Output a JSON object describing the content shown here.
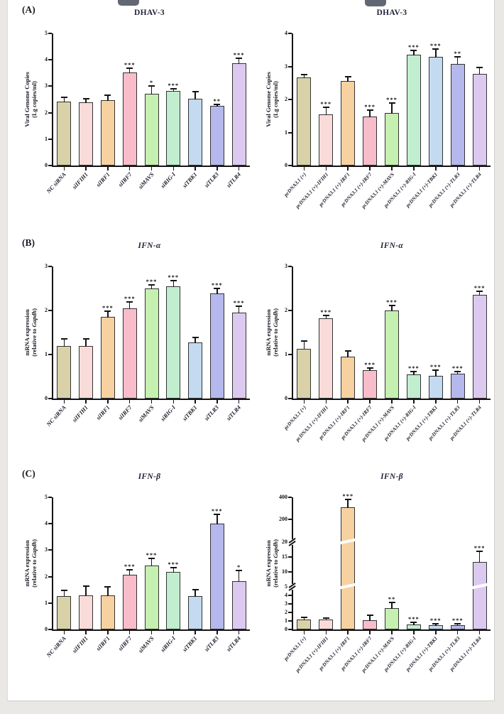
{
  "bar_colors": [
    "#d9d2a8",
    "#f9dcd9",
    "#f7d1a0",
    "#f9bcca",
    "#c5f0b0",
    "#c0eecf",
    "#c3daf0",
    "#b5b8ec",
    "#dcc9f0"
  ],
  "colors": {
    "page_background": "#ffffff",
    "backdrop": "#eae8e5",
    "axis": "#141414"
  },
  "chart_data": [
    {
      "type": "bar",
      "panel": "(A)",
      "title": "DHAV-3",
      "ylabel_line1": "Viral Genome Copies",
      "ylabel2_pre": "(Lg copies/ml)",
      "ylabel2_italic": "",
      "ylabel2_post": "",
      "categories": [
        "NC siRNA",
        "siIFIH1",
        "siIRF1",
        "siIRF7",
        "siMAVS",
        "siRIG-I",
        "siTBK1",
        "siTLR3",
        "siTLR4"
      ],
      "values": [
        2.42,
        2.4,
        2.46,
        3.52,
        2.72,
        2.83,
        2.52,
        2.25,
        3.86
      ],
      "errors": [
        0.15,
        0.12,
        0.2,
        0.15,
        0.28,
        0.07,
        0.27,
        0.07,
        0.2
      ],
      "significance": [
        "",
        "",
        "",
        "***",
        "*",
        "***",
        "",
        "**",
        "***"
      ],
      "ylim": [
        0,
        5
      ],
      "yticks": [
        {
          "v": 0,
          "l": "0"
        },
        {
          "v": 1,
          "l": "1"
        },
        {
          "v": 2,
          "l": "2"
        },
        {
          "v": 3,
          "l": "3"
        },
        {
          "v": 4,
          "l": "4"
        },
        {
          "v": 5,
          "l": "5"
        }
      ],
      "axis_breaks": [],
      "value_map": [
        [
          0,
          0
        ],
        [
          5,
          1
        ]
      ]
    },
    {
      "type": "bar",
      "panel": "",
      "title": "DHAV-3",
      "ylabel_line1": "Viral Genome Copies",
      "ylabel2_pre": "(Lg copies/ml)",
      "ylabel2_italic": "",
      "ylabel2_post": "",
      "categories": [
        "pcDNA3.1 (+)",
        "pcDNA3.1 (+)-IFIH1",
        "pcDNA3.1 (+)-IRF1",
        "pcDNA3.1 (+)-IRF7",
        "pcDNA3.1 (+)-MAVS",
        "pcDNA3.1 (+)-RIG-I",
        "pcDNA3.1 (+)-TBK1",
        "pcDNA3.1 (+)-TLR3",
        "pcDNA3.1 (+)-TLR4"
      ],
      "values": [
        2.67,
        1.55,
        2.56,
        1.48,
        1.6,
        3.35,
        3.28,
        3.08,
        2.78
      ],
      "errors": [
        0.08,
        0.22,
        0.13,
        0.2,
        0.3,
        0.13,
        0.25,
        0.2,
        0.18
      ],
      "significance": [
        "",
        "***",
        "",
        "***",
        "***",
        "***",
        "***",
        "**",
        ""
      ],
      "ylim": [
        0,
        4
      ],
      "yticks": [
        {
          "v": 0,
          "l": "0"
        },
        {
          "v": 1,
          "l": "1"
        },
        {
          "v": 2,
          "l": "2"
        },
        {
          "v": 3,
          "l": "3"
        },
        {
          "v": 4,
          "l": "4"
        }
      ],
      "axis_breaks": [],
      "value_map": [
        [
          0,
          0
        ],
        [
          4,
          1
        ]
      ]
    },
    {
      "type": "bar",
      "panel": "(B)",
      "title": "IFN-α",
      "ylabel_line1": "mRNA expression",
      "ylabel2_pre": "(relative to ",
      "ylabel2_italic": "Gapdh",
      "ylabel2_post": ")",
      "categories": [
        "NC siRNA",
        "siIFIH1",
        "siIRF1",
        "siIRF7",
        "siMAVS",
        "siRIG-I",
        "siTBK1",
        "siTLR3",
        "siTLR4"
      ],
      "values": [
        1.2,
        1.2,
        1.86,
        2.05,
        2.5,
        2.55,
        1.28,
        2.38,
        1.95
      ],
      "errors": [
        0.15,
        0.16,
        0.12,
        0.14,
        0.08,
        0.13,
        0.1,
        0.12,
        0.14
      ],
      "significance": [
        "",
        "",
        "***",
        "***",
        "***",
        "***",
        "",
        "***",
        "***"
      ],
      "ylim": [
        0,
        3
      ],
      "yticks": [
        {
          "v": 0,
          "l": "0"
        },
        {
          "v": 1,
          "l": "1"
        },
        {
          "v": 2,
          "l": "2"
        },
        {
          "v": 3,
          "l": "3"
        }
      ],
      "axis_breaks": [],
      "value_map": [
        [
          0,
          0
        ],
        [
          3,
          1
        ]
      ]
    },
    {
      "type": "bar",
      "panel": "",
      "title": "IFN-α",
      "ylabel_line1": "mRNA expression",
      "ylabel2_pre": "(relative to ",
      "ylabel2_italic": "Gapdh",
      "ylabel2_post": ")",
      "categories": [
        "pcDNA3.1 (+)",
        "pcDNA3.1 (+)-IFIH1",
        "pcDNA3.1 (+)-IRF1",
        "pcDNA3.1 (+)-IRF7",
        "pcDNA3.1 (+)-MAVS",
        "pcDNA3.1 (+)-RIG-I",
        "pcDNA3.1 (+)-TBK1",
        "pcDNA3.1 (+)-TLR3",
        "pcDNA3.1 (+)-TLR4"
      ],
      "values": [
        1.13,
        1.82,
        0.95,
        0.65,
        2.0,
        0.55,
        0.52,
        0.56,
        2.36
      ],
      "errors": [
        0.18,
        0.06,
        0.13,
        0.05,
        0.12,
        0.07,
        0.12,
        0.05,
        0.08
      ],
      "significance": [
        "",
        "***",
        "",
        "***",
        "***",
        "***",
        "***",
        "***",
        "***"
      ],
      "ylim": [
        0,
        3
      ],
      "yticks": [
        {
          "v": 0,
          "l": "0"
        },
        {
          "v": 1,
          "l": "1"
        },
        {
          "v": 2,
          "l": "2"
        },
        {
          "v": 3,
          "l": "3"
        }
      ],
      "axis_breaks": [],
      "value_map": [
        [
          0,
          0
        ],
        [
          3,
          1
        ]
      ]
    },
    {
      "type": "bar",
      "panel": "(C)",
      "title": "IFN-β",
      "ylabel_line1": "mRNA expression",
      "ylabel2_pre": "(relative to ",
      "ylabel2_italic": "Gapdh",
      "ylabel2_post": ")",
      "categories": [
        "NC siRNA",
        "siIFIH1",
        "siIRF1",
        "siIRF7",
        "siMAVS",
        "siRIG-I",
        "siTBK1",
        "siTLR3",
        "siTLR4"
      ],
      "values": [
        1.25,
        1.3,
        1.28,
        2.08,
        2.42,
        2.18,
        1.25,
        4.0,
        1.82
      ],
      "errors": [
        0.22,
        0.35,
        0.32,
        0.18,
        0.28,
        0.15,
        0.25,
        0.35,
        0.4
      ],
      "significance": [
        "",
        "",
        "",
        "***",
        "***",
        "***",
        "",
        "***",
        "*"
      ],
      "ylim": [
        0,
        5
      ],
      "yticks": [
        {
          "v": 0,
          "l": "0"
        },
        {
          "v": 1,
          "l": "1"
        },
        {
          "v": 2,
          "l": "2"
        },
        {
          "v": 3,
          "l": "3"
        },
        {
          "v": 4,
          "l": "4"
        },
        {
          "v": 5,
          "l": "5"
        }
      ],
      "axis_breaks": [],
      "value_map": [
        [
          0,
          0
        ],
        [
          5,
          1
        ]
      ]
    },
    {
      "type": "bar",
      "panel": "",
      "title": "IFN-β",
      "ylabel_line1": "mRNA expression",
      "ylabel2_pre": "(relative to ",
      "ylabel2_italic": "Gapdh",
      "ylabel2_post": ")",
      "categories": [
        "pcDNA3.1 (+)",
        "pcDNA3.1 (+)-IFIH1",
        "pcDNA3.1 (+)-IRF1",
        "pcDNA3.1 (+)-IRF7",
        "pcDNA3.1 (+)-MAVS",
        "pcDNA3.1 (+)-RIG-I",
        "pcDNA3.1 (+)-TBK1",
        "pcDNA3.1 (+)-TLR3",
        "pcDNA3.1 (+)-TLR4"
      ],
      "values": [
        1.2,
        1.2,
        310,
        1.1,
        2.5,
        0.6,
        0.5,
        0.5,
        13.5
      ],
      "errors": [
        0.25,
        0.12,
        70,
        0.6,
        0.7,
        0.2,
        0.15,
        0.15,
        3.5
      ],
      "significance": [
        "",
        "",
        "***",
        "",
        "**",
        "***",
        "***",
        "***",
        "***"
      ],
      "ylim": [
        0,
        400
      ],
      "yticks": [
        {
          "v": 0,
          "l": "0"
        },
        {
          "v": 1,
          "l": "1"
        },
        {
          "v": 2,
          "l": "2"
        },
        {
          "v": 3,
          "l": "3"
        },
        {
          "v": 4,
          "l": "4"
        },
        {
          "v": 5,
          "l": "5"
        },
        {
          "v": 10,
          "l": "10"
        },
        {
          "v": 15,
          "l": "15"
        },
        {
          "v": 20,
          "l": "20"
        },
        {
          "v": 200,
          "l": "200"
        },
        {
          "v": 400,
          "l": "400"
        }
      ],
      "axis_breaks": [
        5,
        20
      ],
      "value_map": [
        [
          0,
          0
        ],
        [
          5,
          0.32
        ],
        [
          20,
          0.66
        ],
        [
          200,
          0.835
        ],
        [
          400,
          1
        ]
      ]
    }
  ]
}
